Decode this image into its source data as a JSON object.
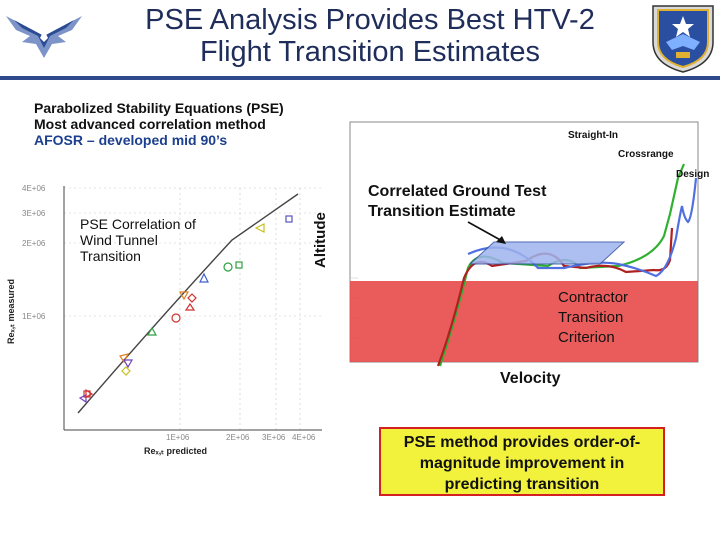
{
  "title": {
    "line1": "PSE Analysis Provides Best HTV-2",
    "line2": "Flight Transition Estimates"
  },
  "intro": {
    "line1": "Parabolized Stability Equations (PSE)",
    "line2": "Most advanced correlation method",
    "line3": "AFOSR – developed mid 90’s"
  },
  "scatter": {
    "annotation": [
      "PSE Correlation of",
      "Wind Tunnel",
      "Transition"
    ],
    "ylabel": "Reₓ,ₜ measured",
    "xlabel": "Reₓ,ₜ predicted",
    "yticks": [
      "4E+06",
      "3E+06",
      "2E+06",
      "1E+06"
    ],
    "xticks": [
      "1E+06",
      "2E+06",
      "3E+06",
      "4E+06"
    ]
  },
  "main_chart": {
    "ylabel": "Altitude",
    "xlabel": "Velocity",
    "curve_labels": {
      "straight_in": "Straight-In",
      "crossrange": "Crossrange",
      "design": "Design"
    },
    "correlated": [
      "Correlated Ground Test",
      "Transition Estimate"
    ],
    "contractor": [
      "Contractor",
      "Transition",
      "Criterion"
    ]
  },
  "callout": [
    "PSE method provides order-of-",
    "magnitude improvement in",
    "predicting transition"
  ],
  "colors": {
    "title": "#1f2d5a",
    "band": "#e84a4a",
    "estimate": "#9fb4ef",
    "callout_bg": "#f2f23c",
    "callout_border": "#d42020"
  }
}
